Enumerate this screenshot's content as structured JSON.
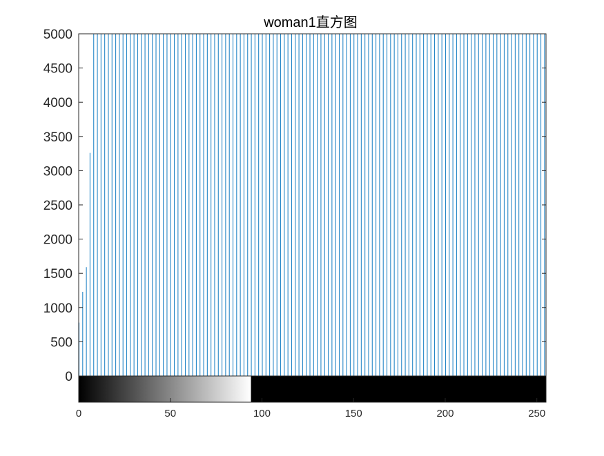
{
  "figure": {
    "background": "#ffffff",
    "axes_color": "#262626"
  },
  "chart_data": {
    "type": "bar",
    "title": "woman1直方图",
    "xlabel": "",
    "ylabel": "",
    "xlim": [
      0,
      255
    ],
    "ylim": [
      0,
      5000
    ],
    "xticks": [
      "0",
      "50",
      "100",
      "150",
      "200",
      "250"
    ],
    "yticks": [
      "0",
      "500",
      "1000",
      "1500",
      "2000",
      "2500",
      "3000",
      "3500",
      "4000",
      "4500",
      "5000"
    ],
    "bar_color": "#0072BD",
    "note": "stem histogram; visible lines at every other gray level, most clipped above 5000",
    "series": [
      {
        "x": [
          0,
          2,
          4,
          6,
          8,
          10,
          12,
          14,
          16,
          18,
          20,
          22,
          24,
          26,
          28,
          30,
          32,
          34,
          36,
          38,
          40,
          42,
          44,
          46,
          48,
          50,
          52,
          54,
          56,
          58,
          60,
          62,
          64,
          66,
          68,
          70,
          72,
          74,
          76,
          78,
          80,
          82,
          84,
          86,
          88,
          90,
          92,
          94,
          96,
          98,
          100,
          102,
          104,
          106,
          108,
          110,
          112,
          114,
          116,
          118,
          120,
          122,
          124,
          126,
          128,
          130,
          132,
          134,
          136,
          138,
          140,
          142,
          144,
          146,
          148,
          150,
          152,
          154,
          156,
          158,
          160,
          162,
          164,
          166,
          168,
          170,
          172,
          174,
          176,
          178,
          180,
          182,
          184,
          186,
          188,
          190,
          192,
          194,
          196,
          198,
          200,
          202,
          204,
          206,
          208,
          210,
          212,
          214,
          216,
          218,
          220,
          222,
          224,
          226,
          228,
          230,
          232,
          234,
          236,
          238,
          240,
          242,
          244,
          246,
          248,
          250,
          252,
          254
        ],
        "values": [
          780,
          1230,
          1590,
          3260,
          5000,
          5000,
          5000,
          5000,
          5000,
          5000,
          5000,
          5000,
          5000,
          5000,
          5000,
          5000,
          5000,
          5000,
          5000,
          5000,
          5000,
          5000,
          5000,
          5000,
          5000,
          5000,
          5000,
          5000,
          5000,
          5000,
          5000,
          5000,
          5000,
          5000,
          5000,
          5000,
          5000,
          5000,
          5000,
          5000,
          5000,
          5000,
          5000,
          5000,
          5000,
          5000,
          5000,
          5000,
          5000,
          5000,
          5000,
          5000,
          5000,
          5000,
          5000,
          5000,
          5000,
          5000,
          5000,
          5000,
          5000,
          5000,
          5000,
          5000,
          5000,
          5000,
          5000,
          5000,
          5000,
          5000,
          5000,
          5000,
          5000,
          5000,
          5000,
          5000,
          5000,
          5000,
          5000,
          5000,
          5000,
          5000,
          5000,
          5000,
          5000,
          5000,
          5000,
          5000,
          5000,
          5000,
          5000,
          5000,
          5000,
          5000,
          5000,
          5000,
          5000,
          5000,
          5000,
          5000,
          5000,
          5000,
          5000,
          5000,
          5000,
          5000,
          5000,
          5000,
          5000,
          5000,
          5000,
          5000,
          5000,
          5000,
          5000,
          5000,
          5000,
          5000,
          5000,
          5000,
          5000,
          5000,
          5000,
          5000,
          5000,
          5000,
          5000,
          5000
        ]
      }
    ],
    "colorbar": {
      "gradient_range": [
        0,
        94
      ],
      "gradient_colors": [
        "#000000",
        "#ffffff"
      ],
      "rest_color": "#000000"
    }
  }
}
